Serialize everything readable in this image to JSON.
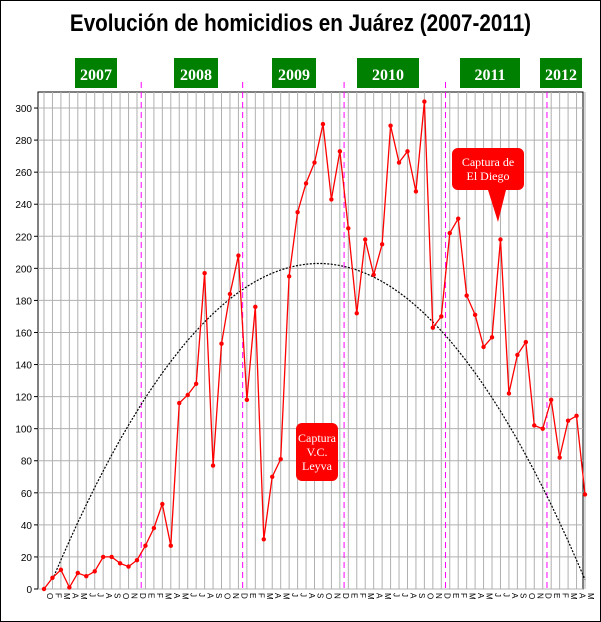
{
  "title": "Evolución de homicidios en Juárez (2007-2011)",
  "colors": {
    "series": "#ff0000",
    "trend": "#000000",
    "year_badge": "#008000",
    "year_badge_text": "#ffffff",
    "divider": "#ff00ff",
    "grid": "#b0b0b0",
    "callout": "#ff0000",
    "callout_text": "#ffffff"
  },
  "year_labels": [
    "2007",
    "2008",
    "2009",
    "2010",
    "2011",
    "2012"
  ],
  "annotations": [
    {
      "lines": [
        "Captura",
        "V.C.",
        "Leyva"
      ]
    },
    {
      "lines": [
        "Captura de",
        "El Diego"
      ]
    }
  ],
  "chart_data": {
    "type": "line",
    "title": "Evolución de homicidios en Juárez (2007-2011)",
    "xlabel": "",
    "ylabel": "",
    "ylim": [
      0,
      310
    ],
    "yticks": [
      0,
      20,
      40,
      60,
      80,
      100,
      120,
      140,
      160,
      180,
      200,
      220,
      240,
      260,
      280,
      300
    ],
    "grid": true,
    "legend": "none",
    "categories": [
      "O",
      "F",
      "M",
      "A",
      "M",
      "J",
      "J",
      "A",
      "S",
      "O",
      "N",
      "D",
      "E",
      "F",
      "M",
      "A",
      "M",
      "J",
      "J",
      "A",
      "S",
      "O",
      "N",
      "D",
      "E",
      "F",
      "M",
      "A",
      "M",
      "J",
      "J",
      "A",
      "S",
      "O",
      "N",
      "D",
      "E",
      "F",
      "M",
      "A",
      "M",
      "J",
      "J",
      "A",
      "S",
      "O",
      "N",
      "D",
      "E",
      "F",
      "M",
      "A",
      "M",
      "J",
      "J",
      "A",
      "S",
      "O",
      "N",
      "D",
      "E",
      "F",
      "M",
      "A",
      "M"
    ],
    "series": [
      {
        "values": [
          0,
          7,
          12,
          1,
          10,
          8,
          11,
          20,
          20,
          16,
          14,
          18,
          27,
          38,
          53,
          27,
          116,
          121,
          128,
          197,
          77,
          153,
          184,
          208,
          118,
          176,
          31,
          70,
          81,
          195,
          235,
          253,
          266,
          290,
          243,
          273,
          225,
          172,
          218,
          196,
          215,
          289,
          266,
          273,
          248,
          304,
          163,
          170,
          222,
          231,
          183,
          171,
          151,
          157,
          218,
          122,
          146,
          154,
          102,
          100,
          118,
          82,
          105,
          108,
          59
        ]
      },
      {
        "values": [
          -6.8,
          5.9,
          18.1,
          30.0,
          41.5,
          52.6,
          63.3,
          73.6,
          83.5,
          93.1,
          102.2,
          110.9,
          119.3,
          127.2,
          134.8,
          141.9,
          148.7,
          155.1,
          161.0,
          166.6,
          171.8,
          176.6,
          181.0,
          185.0,
          188.6,
          191.8,
          194.6,
          197.0,
          199.0,
          200.6,
          201.8,
          202.6,
          203.0,
          203.0,
          202.6,
          201.8,
          200.6,
          199.0,
          197.0,
          194.6,
          191.8,
          188.6,
          185.0,
          181.0,
          176.6,
          171.8,
          166.6,
          161.0,
          155.1,
          148.7,
          141.9,
          134.8,
          127.2,
          119.3,
          110.9,
          102.2,
          93.1,
          83.5,
          73.6,
          63.3,
          52.6,
          41.5,
          30.0,
          18.1,
          5.9
        ]
      }
    ]
  }
}
